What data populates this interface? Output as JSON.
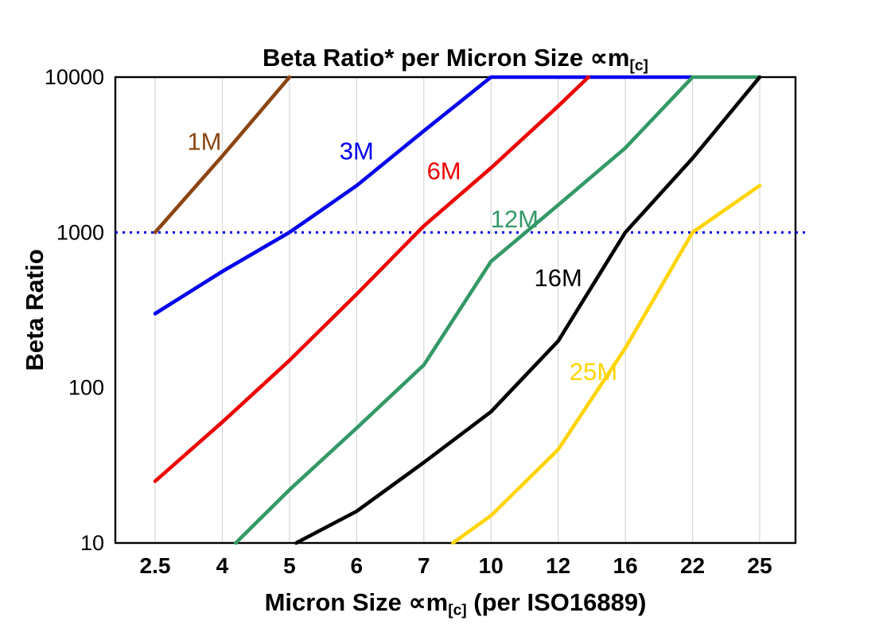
{
  "title": {
    "prefix": "Beta Ratio* per Micron Size ",
    "symbol": "∝m",
    "subscript": "[c]"
  },
  "axes": {
    "y_label": "Beta Ratio",
    "x_label": {
      "prefix": "Micron Size ",
      "symbol": "∝m",
      "subscript": "[c]",
      "suffix": " (per ISO16889)"
    },
    "x_ticks": [
      "2.5",
      "4",
      "5",
      "6",
      "7",
      "10",
      "12",
      "16",
      "22",
      "25"
    ],
    "y_ticks": [
      "10",
      "100",
      "1000",
      "10000"
    ]
  },
  "chart_data": {
    "type": "line",
    "x_scale": "categorical",
    "y_scale": "log",
    "grid": "vertical-only",
    "legend_position": "inline-labels",
    "categories": [
      2.5,
      4,
      5,
      6,
      7,
      10,
      12,
      16,
      22,
      25
    ],
    "ylim": [
      10,
      10000
    ],
    "reference_line": {
      "y": 1000,
      "color": "#0000ee",
      "style": "dotted"
    },
    "series": [
      {
        "name": "1M",
        "color": "#8b4513",
        "points": [
          [
            2.5,
            1000
          ],
          [
            4,
            3100
          ],
          [
            5,
            10000
          ]
        ]
      },
      {
        "name": "3M",
        "color": "#0000ee",
        "points": [
          [
            2.5,
            300
          ],
          [
            4,
            560
          ],
          [
            5,
            1000
          ],
          [
            6,
            2000
          ],
          [
            7,
            4500
          ],
          [
            10,
            10000
          ],
          [
            22,
            10000
          ]
        ]
      },
      {
        "name": "6M",
        "color": "#ee0000",
        "points": [
          [
            2.5,
            25
          ],
          [
            4,
            60
          ],
          [
            5,
            150
          ],
          [
            6,
            400
          ],
          [
            7,
            1100
          ],
          [
            10,
            2600
          ],
          [
            12,
            6500
          ],
          [
            13.8,
            10000
          ]
        ]
      },
      {
        "name": "12M",
        "color": "#339966",
        "points": [
          [
            4.2,
            10
          ],
          [
            5,
            22
          ],
          [
            6,
            55
          ],
          [
            7,
            140
          ],
          [
            10,
            650
          ],
          [
            12,
            1500
          ],
          [
            16,
            3500
          ],
          [
            22,
            10000
          ],
          [
            25,
            10000
          ]
        ]
      },
      {
        "name": "16M",
        "color": "#000000",
        "points": [
          [
            5.1,
            10
          ],
          [
            6,
            16
          ],
          [
            7,
            33
          ],
          [
            10,
            70
          ],
          [
            12,
            200
          ],
          [
            16,
            1000
          ],
          [
            22,
            3000
          ],
          [
            25,
            10000
          ]
        ]
      },
      {
        "name": "25M",
        "color": "#ffd400",
        "points": [
          [
            8.3,
            10
          ],
          [
            10,
            15
          ],
          [
            12,
            40
          ],
          [
            16,
            180
          ],
          [
            22,
            1000
          ],
          [
            25,
            2000
          ]
        ]
      }
    ],
    "series_labels": [
      {
        "text": "1M",
        "x": 3.6,
        "y": 3400,
        "color": "#8b4513"
      },
      {
        "text": "3M",
        "x": 6.0,
        "y": 2950,
        "color": "#0000ee"
      },
      {
        "text": "6M",
        "x": 7.9,
        "y": 2200,
        "color": "#ee0000"
      },
      {
        "text": "12M",
        "x": 10.7,
        "y": 1080,
        "color": "#339966"
      },
      {
        "text": "16M",
        "x": 12.0,
        "y": 450,
        "color": "#000000"
      },
      {
        "text": "25M",
        "x": 14.1,
        "y": 112,
        "color": "#ffd400"
      }
    ]
  }
}
